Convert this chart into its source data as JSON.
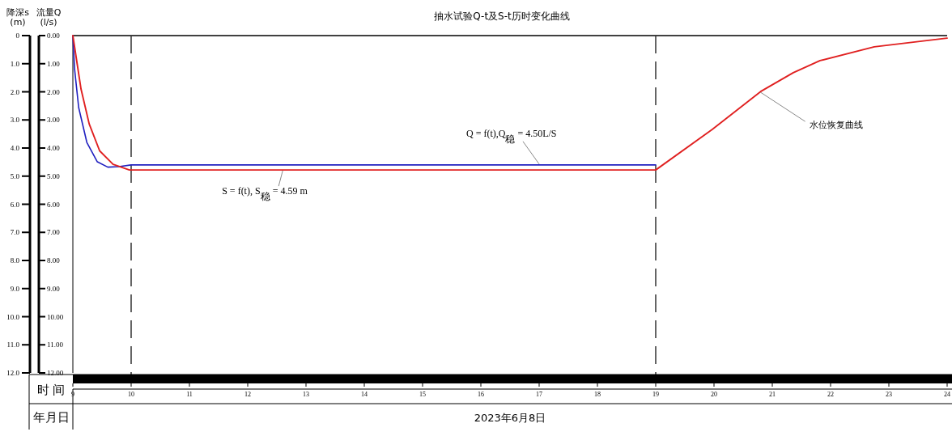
{
  "chart_data": {
    "type": "line",
    "title": "抽水试验Q-t及S-t历时变化曲线",
    "xlabel": "时 间",
    "ylabel": "降深s (m)",
    "y2label": "流量Q (l/s)",
    "xlim": [
      9,
      24
    ],
    "xticks": [
      9,
      10,
      11,
      12,
      13,
      14,
      15,
      16,
      17,
      18,
      19,
      20,
      21,
      22,
      23,
      24
    ],
    "ylim": [
      12,
      0
    ],
    "yticks": [
      0,
      {
        "value": 1,
        "label": "1.0"
      },
      {
        "value": 2,
        "label": "2.0"
      },
      {
        "value": 3,
        "label": "3.0"
      },
      {
        "value": 4,
        "label": "4.0"
      },
      {
        "value": 5,
        "label": "5.0"
      },
      {
        "value": 6,
        "label": "6.0"
      },
      {
        "value": 7,
        "label": "7.0"
      },
      {
        "value": 8,
        "label": "8.0"
      },
      {
        "value": 9,
        "label": "9.0"
      },
      {
        "value": 10,
        "label": "10.0"
      },
      {
        "value": 11,
        "label": "11.0"
      },
      {
        "value": 12,
        "label": "12.0"
      }
    ],
    "y2lim": [
      12,
      0
    ],
    "y2ticks": [
      {
        "value": 0,
        "label": "0.00"
      },
      {
        "value": 1,
        "label": "1.00"
      },
      {
        "value": 2,
        "label": "2.00"
      },
      {
        "value": 3,
        "label": "3.00"
      },
      {
        "value": 4,
        "label": "4.00"
      },
      {
        "value": 5,
        "label": "5.00"
      },
      {
        "value": 6,
        "label": "6.00"
      },
      {
        "value": 7,
        "label": "7.00"
      },
      {
        "value": 8,
        "label": "8.00"
      },
      {
        "value": 9,
        "label": "9.00"
      },
      {
        "value": 10,
        "label": "10.00"
      },
      {
        "value": 11,
        "label": "11.00"
      },
      {
        "value": 12,
        "label": "12.00"
      }
    ],
    "series": [
      {
        "color": "#2020c0",
        "axis": "y2",
        "x": [
          9,
          9.03,
          9.1,
          9.24,
          9.42,
          9.6,
          9.79,
          10,
          19
        ],
        "values": [
          0,
          1.2,
          2.56,
          3.8,
          4.49,
          4.68,
          4.66,
          4.6,
          4.6
        ]
      },
      {
        "color": "#e02020",
        "x": [
          9,
          9.14,
          9.28,
          9.46,
          9.69,
          9.97,
          10,
          19,
          19.97,
          20.8,
          21.36,
          21.82,
          22.75,
          24
        ],
        "values": [
          0,
          1.9,
          3.14,
          4.1,
          4.58,
          4.78,
          4.78,
          4.78,
          3.34,
          1.99,
          1.32,
          0.89,
          0.4,
          0.09
        ]
      }
    ],
    "ref_lines": [
      {
        "axis": "x",
        "value": 10,
        "color": "#333333",
        "line_style": "dashed"
      },
      {
        "axis": "x",
        "value": 19,
        "color": "#333333",
        "line_style": "dashed"
      }
    ],
    "annotations": [
      {
        "text": "Q = f(t),Q$_{稳}$ = 4.50L/S",
        "x": 17,
        "y": 4.6
      },
      {
        "text": "S = f(t), S$_{稳}$ = 4.59 m",
        "x": 12.6,
        "y": 4.78
      },
      {
        "text": "水位恢复曲线",
        "x": 20.8,
        "y": 1.99
      },
      "年月日",
      "2023年6月8日"
    ],
    "grid": false,
    "line_style": "solid"
  }
}
